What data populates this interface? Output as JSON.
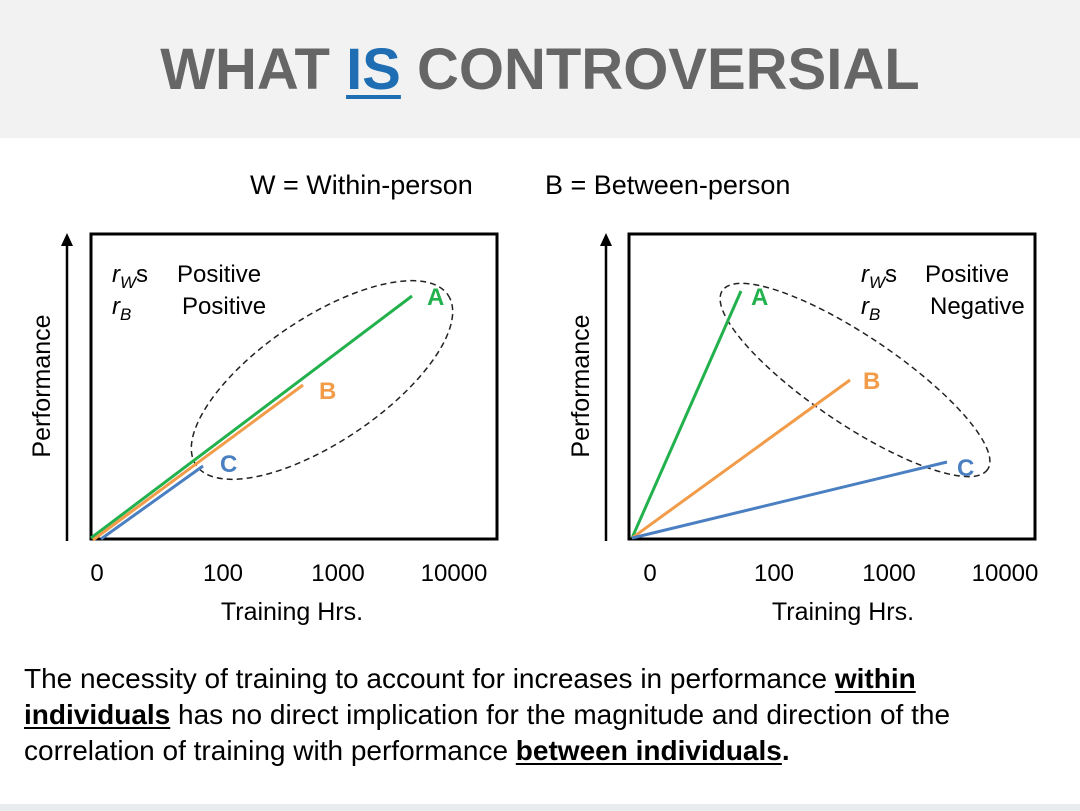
{
  "title": {
    "part1": "WHAT ",
    "highlight": "IS",
    "part2": " CONTROVERSIAL"
  },
  "legend": {
    "within": "W = Within-person",
    "between": "B = Between-person"
  },
  "panels": [
    {
      "ylabel": "Performance",
      "xlabel": "Training Hrs.",
      "xticks": [
        "0",
        "100",
        "1000",
        "10000"
      ],
      "rw_sym": "r",
      "rw_sub": "W",
      "rw_suffix": "s",
      "rw_value": "Positive",
      "rb_sym": "r",
      "rb_sub": "B",
      "rb_value": "Positive",
      "series": [
        {
          "label": "A",
          "color": "#22b14c"
        },
        {
          "label": "B",
          "color": "#f29b48"
        },
        {
          "label": "C",
          "color": "#4a7fc1"
        }
      ]
    },
    {
      "ylabel": "Performance",
      "xlabel": "Training Hrs.",
      "xticks": [
        "0",
        "100",
        "1000",
        "10000"
      ],
      "rw_sym": "r",
      "rw_sub": "W",
      "rw_suffix": "s",
      "rw_value": "Positive",
      "rb_sym": "r",
      "rb_sub": "B",
      "rb_value": "Negative",
      "series": [
        {
          "label": "A",
          "color": "#22b14c"
        },
        {
          "label": "B",
          "color": "#f29b48"
        },
        {
          "label": "C",
          "color": "#4a7fc1"
        }
      ]
    }
  ],
  "bottom_text": {
    "t1": "The necessity of training to account for increases in performance ",
    "u1": "within individuals",
    "t2": " has no direct implication for the magnitude and direction of the correlation of training with performance ",
    "u2": "between individuals",
    "t3": "."
  }
}
